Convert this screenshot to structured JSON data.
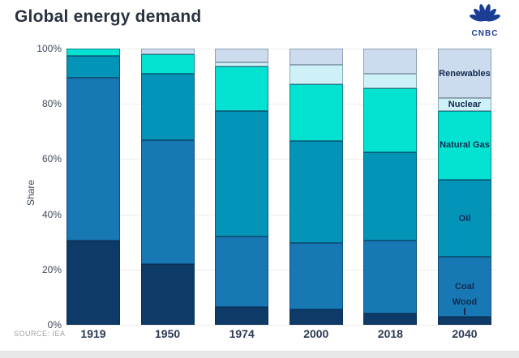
{
  "header": {
    "title": "Global energy demand",
    "logo_text": "CNBC"
  },
  "axes": {
    "y_label": "Share",
    "y_ticks": [
      "100%",
      "80%",
      "60%",
      "40%",
      "20%",
      "0%"
    ],
    "x_ticks": [
      "1919",
      "1950",
      "1974",
      "2000",
      "2018",
      "2040"
    ]
  },
  "source": {
    "label": "SOURCE: IEA"
  },
  "legend": {
    "labels": [
      "Renewables",
      "Nuclear",
      "Natural Gas",
      "Oil",
      "Coal",
      "Wood"
    ]
  },
  "colors": {
    "wood": "#0d3a66",
    "coal": "#1878b4",
    "oil": "#0494b8",
    "natural_gas": "#04e3d2",
    "nuclear": "#cdf1f7",
    "renewables": "#ccdcee",
    "cnbc_blue": "#1b3e94",
    "title_text": "#2a3240",
    "label_text": "#14294e"
  },
  "chart_data": {
    "type": "bar",
    "stacked": true,
    "title": "Global energy demand",
    "xlabel": "",
    "ylabel": "Share",
    "ylim": [
      0,
      100
    ],
    "y_tick_format": "percent",
    "grid": true,
    "legend_position": "inside-last-bar",
    "categories": [
      "1919",
      "1950",
      "1974",
      "2000",
      "2018",
      "2040"
    ],
    "series": [
      {
        "name": "Wood",
        "color": "#0d3a66",
        "pale": false,
        "values": [
          30.5,
          22,
          6.5,
          5.5,
          4,
          3
        ]
      },
      {
        "name": "Coal",
        "color": "#1878b4",
        "pale": false,
        "values": [
          59,
          45,
          25.5,
          24,
          26.5,
          21.5
        ]
      },
      {
        "name": "Oil",
        "color": "#0494b8",
        "pale": false,
        "values": [
          8,
          24,
          45.5,
          37,
          32,
          28
        ]
      },
      {
        "name": "Natural Gas",
        "color": "#04e3d2",
        "pale": false,
        "values": [
          2.5,
          7,
          16,
          20.5,
          23,
          25
        ]
      },
      {
        "name": "Nuclear",
        "color": "#cdf1f7",
        "pale": true,
        "values": [
          0,
          0,
          1.5,
          7,
          5.5,
          4.5
        ]
      },
      {
        "name": "Renewables",
        "color": "#ccdcee",
        "pale": true,
        "values": [
          0,
          2,
          5,
          6,
          9,
          18
        ]
      }
    ]
  }
}
